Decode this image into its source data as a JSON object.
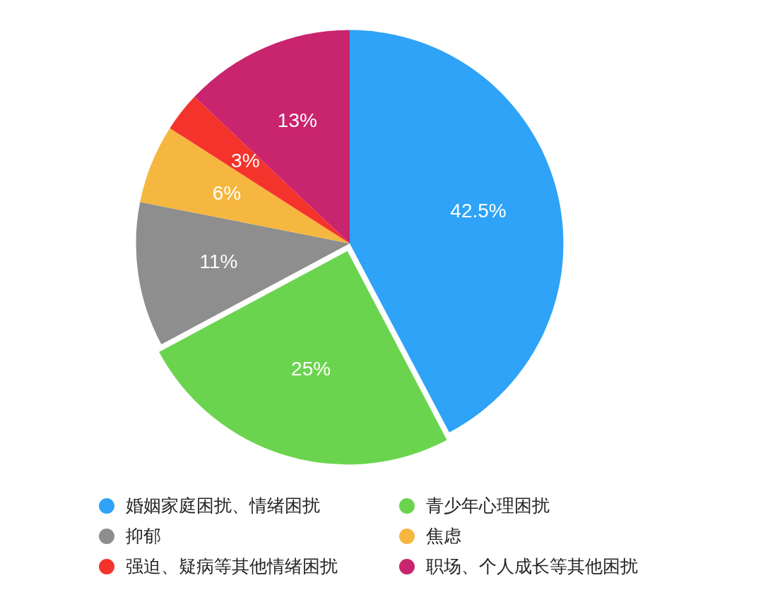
{
  "chart_data": {
    "type": "pie",
    "categories": [
      "婚姻家庭困扰、情绪困扰",
      "青少年心理困扰",
      "抑郁",
      "焦虑",
      "强迫、疑病等其他情绪困扰",
      "职场、个人成长等其他困扰"
    ],
    "values": [
      42.5,
      25,
      11,
      6,
      3,
      13
    ],
    "colors": [
      "#2ea3f7",
      "#6bd44f",
      "#8e8e8e",
      "#f5b73f",
      "#f5332d",
      "#c9246e"
    ],
    "value_labels": [
      "42.5%",
      "25%",
      "11%",
      "6%",
      "3%",
      "13%"
    ],
    "legend": "bottom"
  }
}
